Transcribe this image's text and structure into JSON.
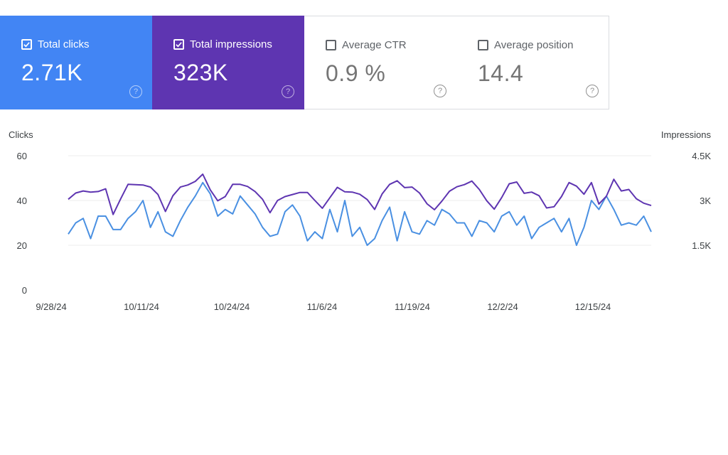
{
  "metrics": [
    {
      "label": "Total clicks",
      "value": "2.71K",
      "checked": true,
      "color": "#4285f4"
    },
    {
      "label": "Total impressions",
      "value": "323K",
      "checked": true,
      "color": "#5e35b1"
    },
    {
      "label": "Average CTR",
      "value": "0.9 %",
      "checked": false
    },
    {
      "label": "Average position",
      "value": "14.4",
      "checked": false
    }
  ],
  "help_glyph": "?",
  "chart_data": {
    "type": "line",
    "left_axis": {
      "title": "Clicks",
      "ticks": [
        "60",
        "40",
        "20",
        "0"
      ],
      "range": [
        0,
        60
      ]
    },
    "right_axis": {
      "title": "Impressions",
      "ticks": [
        "4.5K",
        "3K",
        "1.5K"
      ],
      "range": [
        0,
        4500
      ]
    },
    "x_ticks": [
      "9/28/24",
      "10/11/24",
      "10/24/24",
      "11/6/24",
      "11/19/24",
      "12/2/24",
      "12/15/24"
    ],
    "grid": true,
    "series": [
      {
        "name": "Total clicks",
        "axis": "left",
        "color": "#4a90e2",
        "values": [
          25,
          30,
          32,
          23,
          33,
          33,
          27,
          27,
          32,
          35,
          40,
          28,
          35,
          26,
          24,
          31,
          37,
          42,
          48,
          43,
          33,
          36,
          34,
          42,
          38,
          34,
          28,
          24,
          25,
          35,
          38,
          33,
          22,
          26,
          23,
          36,
          26,
          40,
          24,
          28,
          20,
          23,
          31,
          37,
          22,
          35,
          26,
          25,
          31,
          29,
          36,
          34,
          30,
          30,
          24,
          31,
          30,
          26,
          33,
          35,
          29,
          33,
          23,
          28,
          30,
          32,
          26,
          32,
          20,
          28,
          40,
          36,
          42,
          36,
          29,
          30,
          29,
          33,
          26
        ]
      },
      {
        "name": "Total impressions",
        "axis": "right",
        "color": "#5e35b1",
        "values": [
          3040,
          3250,
          3320,
          3280,
          3300,
          3390,
          2530,
          3050,
          3540,
          3530,
          3520,
          3450,
          3200,
          2630,
          3160,
          3450,
          3520,
          3640,
          3880,
          3360,
          2990,
          3130,
          3540,
          3540,
          3470,
          3300,
          3040,
          2590,
          3000,
          3130,
          3200,
          3270,
          3270,
          3000,
          2740,
          3090,
          3440,
          3290,
          3280,
          3210,
          3030,
          2700,
          3220,
          3540,
          3660,
          3430,
          3450,
          3250,
          2890,
          2690,
          2980,
          3310,
          3460,
          3530,
          3650,
          3370,
          2990,
          2710,
          3100,
          3560,
          3620,
          3240,
          3280,
          3160,
          2750,
          2790,
          3130,
          3600,
          3480,
          3210,
          3600,
          2880,
          3140,
          3710,
          3320,
          3370,
          3060,
          2910,
          2830
        ]
      }
    ]
  }
}
